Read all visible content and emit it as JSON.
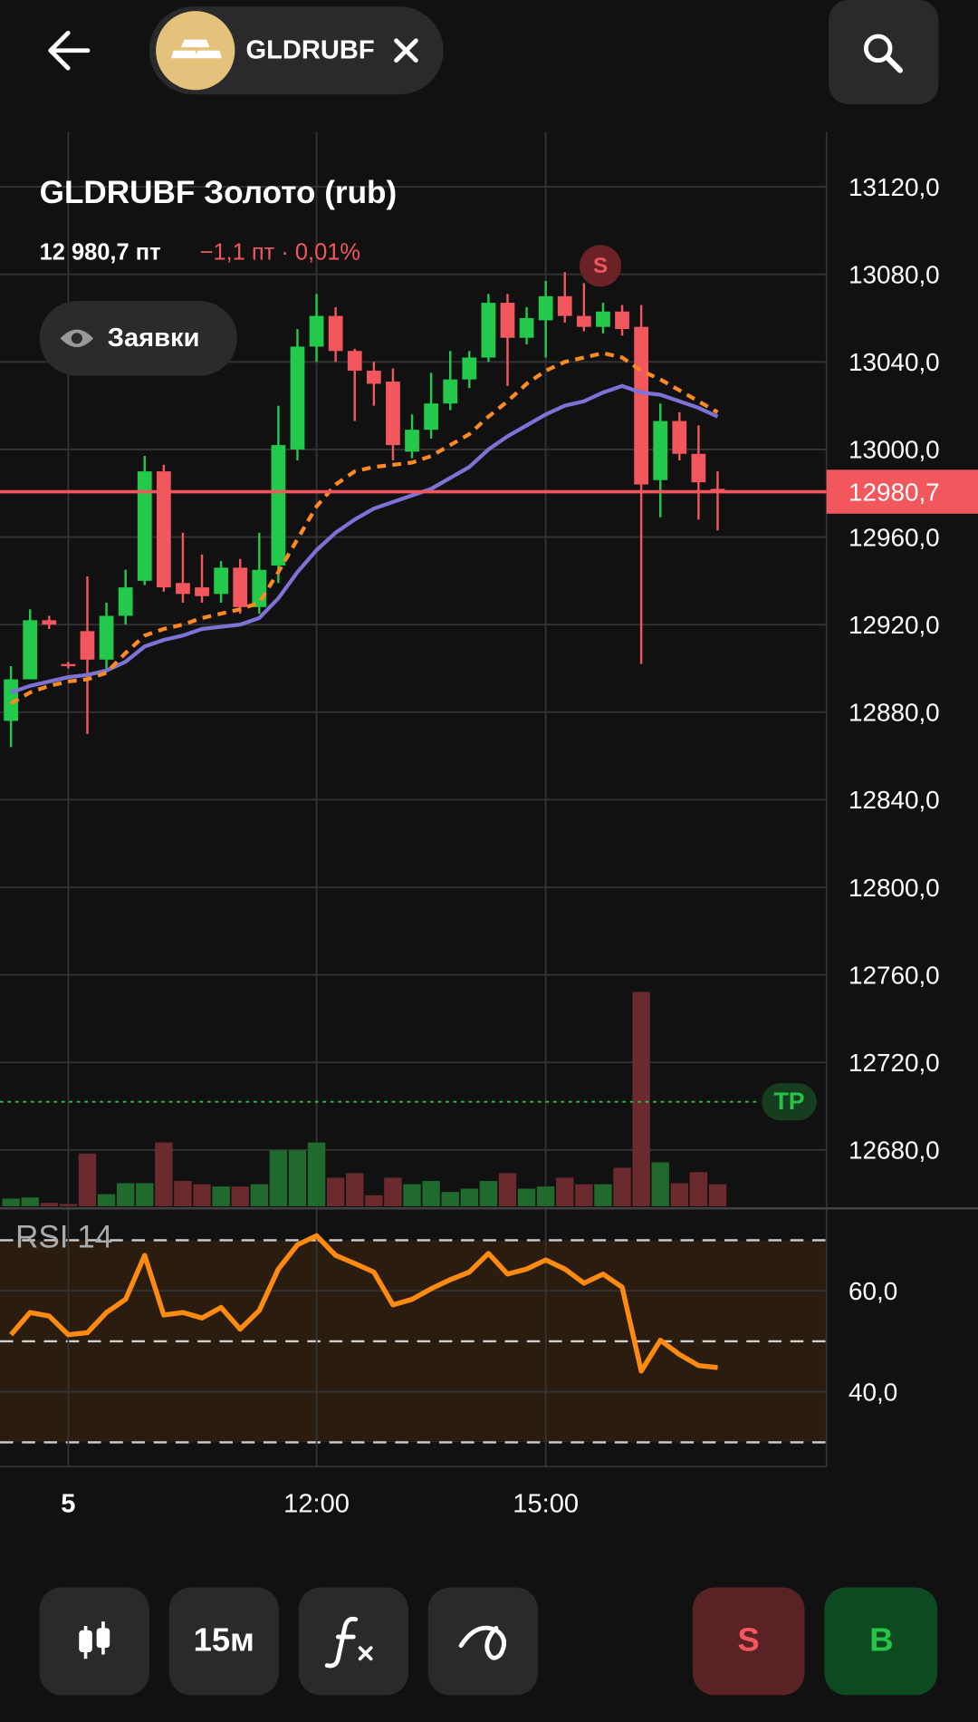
{
  "header": {
    "symbol": "GLDRUBF"
  },
  "chart_data": {
    "type": "candlestick",
    "title": "GLDRUBF Золото (rub)",
    "price": "12 980,7 пт",
    "change": "−1,1 пт · 0,01%",
    "orders_button": "Заявки",
    "signal": "S",
    "categories": [
      null,
      null,
      null,
      "5",
      null,
      null,
      null,
      null,
      null,
      null,
      null,
      null,
      null,
      null,
      null,
      null,
      "12:00",
      null,
      null,
      null,
      null,
      null,
      null,
      null,
      null,
      null,
      null,
      null,
      "15:00",
      null,
      null,
      null,
      null,
      null,
      null,
      null,
      null,
      null
    ],
    "open": [
      12876,
      12895,
      12922,
      12902,
      12917,
      12904,
      12924,
      12940,
      12990,
      12939,
      12937,
      12934,
      12946,
      12928,
      12947,
      13000,
      13047,
      13061,
      13045,
      13036,
      13031,
      12999,
      13009,
      13021,
      13032,
      13042,
      13067,
      13051,
      13059,
      13070,
      13061,
      13056,
      13063,
      13056,
      12986,
      13013,
      12998,
      12982
    ],
    "high": [
      12901,
      12927,
      12924,
      12903,
      12942,
      12930,
      12945,
      12997,
      12993,
      12962,
      12952,
      12949,
      12950,
      12962,
      13020,
      13055,
      13071,
      13065,
      13046,
      13040,
      13037,
      13016,
      13035,
      13045,
      13045,
      13071,
      13071,
      13065,
      13077,
      13081,
      13076,
      13067,
      13066,
      13066,
      13021,
      13017,
      13011,
      12990
    ],
    "low": [
      12864,
      12895,
      12918,
      12900,
      12870,
      12900,
      12920,
      12938,
      12935,
      12930,
      12930,
      12930,
      12925,
      12925,
      12939,
      12995,
      13040,
      13040,
      13013,
      13020,
      12995,
      12996,
      13005,
      13018,
      13028,
      13040,
      13029,
      13048,
      13042,
      13058,
      13054,
      13053,
      13052,
      12902,
      12969,
      12995,
      12968,
      12963
    ],
    "close": [
      12895,
      12922,
      12920,
      12901,
      12904,
      12924,
      12937,
      12990,
      12937,
      12934,
      12933,
      12946,
      12928,
      12945,
      13002,
      13047,
      13061,
      13045,
      13036,
      13030,
      13002,
      13009,
      13021,
      13032,
      13042,
      13067,
      13051,
      13060,
      13070,
      13061,
      13056,
      13063,
      13055,
      12984,
      13013,
      12998,
      12985,
      12981
    ],
    "up_color": "#22c94a",
    "down_color": "#f2575d",
    "moving_averages": [
      {
        "color": "#7d72d6",
        "dashed": false,
        "values": [
          12889,
          12892,
          12894,
          12896,
          12897,
          12899,
          12903,
          12910,
          12913,
          12915,
          12918,
          12919,
          12920,
          12923,
          12932,
          12944,
          12954,
          12962,
          12968,
          12973,
          12976,
          12979,
          12982,
          12987,
          12992,
          13000,
          13006,
          13011,
          13016,
          13020,
          13022,
          13026,
          13029,
          13026,
          13025,
          13022,
          13019,
          13015
        ]
      },
      {
        "color": "#ff8a20",
        "dashed": true,
        "values": [
          12884,
          12889,
          12892,
          12894,
          12895,
          12898,
          12907,
          12915,
          12918,
          12920,
          12923,
          12925,
          12927,
          12930,
          12944,
          12959,
          12974,
          12984,
          12990,
          12992,
          12993,
          12994,
          12997,
          13002,
          13007,
          13015,
          13022,
          13030,
          13036,
          13040,
          13042,
          13044,
          13042,
          13036,
          13032,
          13027,
          13022,
          13017
        ]
      }
    ],
    "ylim": [
      12653.3,
      13145.1
    ],
    "yticks": [
      {
        "value": 13120,
        "label": "13120,0"
      },
      {
        "value": 13080,
        "label": "13080,0"
      },
      {
        "value": 13040,
        "label": "13040,0"
      },
      {
        "value": 13000,
        "label": "13000,0"
      },
      {
        "value": 12960,
        "label": "12960,0"
      },
      {
        "value": 12920,
        "label": "12920,0"
      },
      {
        "value": 12880,
        "label": "12880,0"
      },
      {
        "value": 12840,
        "label": "12840,0"
      },
      {
        "value": 12800,
        "label": "12800,0"
      },
      {
        "value": 12760,
        "label": "12760,0"
      },
      {
        "value": 12720,
        "label": "12720,0"
      },
      {
        "value": 12680,
        "label": "12680,0"
      }
    ],
    "current_price": {
      "value": 12980.7,
      "label": "12980,7"
    },
    "take_profit": {
      "value": 12702,
      "label": "TP"
    },
    "volume": {
      "up_color": "#1f6a2c",
      "down_color": "#6b2a2e",
      "values": [
        7,
        8,
        3,
        2,
        48,
        11,
        21,
        21,
        58,
        23,
        20,
        18,
        18,
        20,
        51,
        51,
        58,
        26,
        30,
        10,
        26,
        20,
        23,
        13,
        16,
        23,
        30,
        16,
        18,
        26,
        20,
        20,
        35,
        195,
        40,
        21,
        31,
        20
      ]
    },
    "rsi": {
      "title": "RSI 14",
      "color": "#ff8a10",
      "values": [
        51.3,
        55.7,
        55.0,
        51.3,
        51.7,
        55.7,
        58.3,
        67.0,
        55.2,
        55.7,
        54.6,
        56.7,
        52.4,
        56.1,
        64.3,
        69.1,
        70.9,
        67.0,
        65.4,
        63.7,
        57.2,
        58.3,
        60.4,
        62.2,
        63.7,
        67.4,
        63.3,
        64.3,
        66.1,
        64.3,
        61.5,
        63.3,
        60.7,
        44.1,
        50.2,
        47.4,
        45.2,
        44.8
      ],
      "ylim": [
        25.2,
        76.3
      ],
      "yticks": [
        {
          "value": 60,
          "label": "60,0"
        },
        {
          "value": 40,
          "label": "40,0"
        }
      ],
      "levels": [
        30,
        50,
        70
      ]
    }
  },
  "toolbar": {
    "interval": "15м",
    "sell": "S",
    "buy": "B"
  }
}
